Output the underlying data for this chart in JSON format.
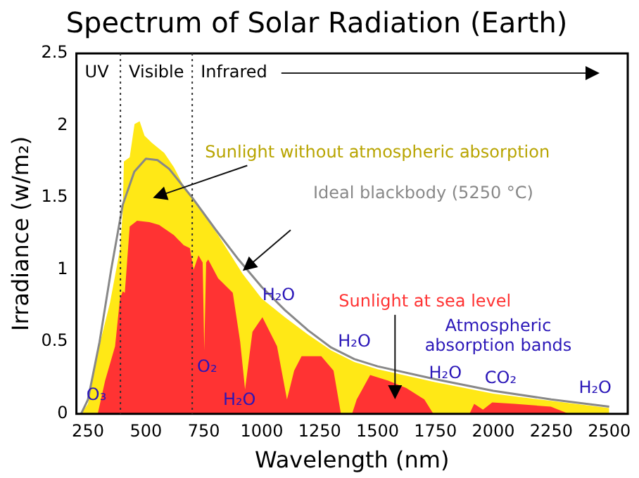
{
  "chart_data": {
    "type": "area",
    "title": "Spectrum of Solar Radiation (Earth)",
    "xlabel": "Wavelength (nm)",
    "ylabel": "Irradiance (w/m₂)",
    "xlim": [
      200,
      2580
    ],
    "xticks": [
      250,
      500,
      750,
      1000,
      1250,
      1500,
      1750,
      2000,
      2250,
      2500
    ],
    "ylim": [
      0,
      2.5
    ],
    "yticks": [
      0,
      0.5,
      1,
      1.5,
      2,
      2.5
    ],
    "series": [
      {
        "name": "Sunlight without atmospheric absorption",
        "color": "#ffe816",
        "x": [
          220,
          250,
          282,
          303,
          345,
          388,
          400,
          405,
          430,
          451,
          473,
          494,
          526,
          579,
          621,
          663,
          706,
          812,
          918,
          1000,
          1100,
          1200,
          1300,
          1400,
          1500,
          1750,
          2000,
          2250,
          2500
        ],
        "values": [
          0,
          0.07,
          0.34,
          0.5,
          0.77,
          1.14,
          1.4,
          1.75,
          1.78,
          2.01,
          2.03,
          1.93,
          1.88,
          1.81,
          1.71,
          1.58,
          1.48,
          1.24,
          0.97,
          0.8,
          0.67,
          0.55,
          0.44,
          0.36,
          0.31,
          0.22,
          0.14,
          0.09,
          0.04
        ]
      },
      {
        "name": "Sunlight at sea level",
        "color": "#ff3333",
        "x": [
          292,
          324,
          367,
          388,
          400,
          409,
          430,
          462,
          515,
          557,
          621,
          663,
          690,
          706,
          727,
          745,
          752,
          760,
          769,
          812,
          875,
          907,
          928,
          960,
          1003,
          1066,
          1109,
          1140,
          1172,
          1257,
          1310,
          1342,
          1390,
          1410,
          1468,
          1546,
          1624,
          1702,
          1741,
          1800,
          1897,
          1917,
          1955,
          1995,
          2092,
          2248,
          2326
        ],
        "values": [
          0,
          0.23,
          0.47,
          0.8,
          0.85,
          0.84,
          1.3,
          1.34,
          1.33,
          1.31,
          1.24,
          1.17,
          1.15,
          1.0,
          1.1,
          1.05,
          0.44,
          1.05,
          1.07,
          0.94,
          0.84,
          0.5,
          0.17,
          0.57,
          0.67,
          0.47,
          0.1,
          0.3,
          0.4,
          0.4,
          0.3,
          0,
          0,
          0.1,
          0.27,
          0.23,
          0.18,
          0.1,
          0,
          0,
          0,
          0.07,
          0.03,
          0.08,
          0.07,
          0.05,
          0
        ]
      },
      {
        "name": "Ideal blackbody (5250 °C)",
        "type": "line",
        "color": "#888888",
        "x": [
          220,
          250,
          300,
          350,
          400,
          450,
          500,
          550,
          600,
          700,
          800,
          900,
          1000,
          1100,
          1200,
          1300,
          1400,
          1500,
          1750,
          2000,
          2250,
          2500
        ],
        "values": [
          0,
          0.1,
          0.5,
          1.0,
          1.45,
          1.68,
          1.77,
          1.76,
          1.7,
          1.5,
          1.28,
          1.07,
          0.88,
          0.72,
          0.58,
          0.46,
          0.38,
          0.33,
          0.24,
          0.16,
          0.1,
          0.05
        ]
      }
    ],
    "ref_lines": [
      {
        "axis": "x",
        "value": 390,
        "line_style": "dotted"
      },
      {
        "axis": "x",
        "value": 700,
        "line_style": "dotted"
      }
    ],
    "annotations": [
      "UV",
      "Visible",
      "Infrared",
      "Atmospheric absorption bands",
      {
        "text": "O₃",
        "x": 250,
        "y": 0.07
      },
      {
        "text": "O₂",
        "x": 752,
        "y": 0.44
      },
      {
        "text": "H₂O",
        "x": 928,
        "y": 0.17
      },
      {
        "text": "H₂O",
        "x": 1000,
        "y": 0.88
      },
      {
        "text": "H₂O",
        "x": 1400,
        "y": 0.38
      },
      {
        "text": "H₂O",
        "x": 1750,
        "y": 0.22
      },
      {
        "text": "CO₂",
        "x": 1995,
        "y": 0.08
      },
      {
        "text": "H₂O",
        "x": 2500,
        "y": 0.04
      }
    ]
  }
}
